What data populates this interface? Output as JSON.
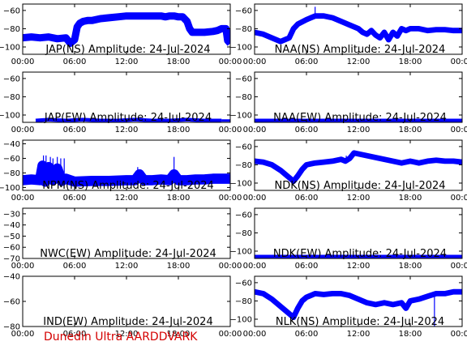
{
  "footer": {
    "text": "Dunedin Ultra AARDDVARK",
    "color": "#d40000"
  },
  "colors": {
    "trace": "#0000ff",
    "axis": "#000000"
  },
  "chart_data": [
    {
      "type": "line",
      "title": "JAP(NS) Amplitude: 24-Jul-2024",
      "x_ticks": [
        "00:00",
        "06:00",
        "12:00",
        "18:00",
        "00:00"
      ],
      "xlim": [
        0,
        24
      ],
      "ylim": [
        -108,
        -53
      ],
      "y_ticks": [
        -100,
        -80,
        -60
      ],
      "y_tick_labels": [
        "−100",
        "−80",
        "−60"
      ],
      "series": [
        {
          "x": [
            0,
            1,
            2,
            3,
            4,
            5,
            5.5,
            6,
            6.3,
            6.6,
            7,
            7.5,
            8,
            9,
            10,
            11,
            12,
            13,
            14,
            15,
            16,
            16.5,
            17,
            17.5,
            18,
            18.5,
            19,
            19.3,
            19.6,
            20,
            21,
            22,
            22.5,
            23,
            23.5,
            23.7,
            24
          ],
          "y": [
            -90,
            -89,
            -90,
            -89,
            -91,
            -90,
            -96,
            -92,
            -78,
            -74,
            -72,
            -71,
            -71,
            -69,
            -68,
            -67,
            -66,
            -66,
            -66,
            -66,
            -66,
            -67,
            -66,
            -66,
            -67,
            -67,
            -72,
            -80,
            -84,
            -84,
            -84,
            -83,
            -82,
            -80,
            -80,
            -93,
            -96
          ],
          "band": 4
        }
      ]
    },
    {
      "type": "line",
      "title": "NAA(NS) Amplitude: 24-Jul-2024",
      "x_ticks": [
        "00:00",
        "06:00",
        "12:00",
        "18:00",
        "00:00"
      ],
      "xlim": [
        0,
        24
      ],
      "ylim": [
        -108,
        -53
      ],
      "y_ticks": [
        -100,
        -80,
        -60
      ],
      "y_tick_labels": [
        "−100",
        "−80",
        "−60"
      ],
      "series": [
        {
          "x": [
            0,
            1,
            2,
            3,
            4,
            4.5,
            5,
            6,
            7,
            8,
            9,
            10,
            11,
            12,
            12.5,
            13,
            13.5,
            14,
            14.5,
            15,
            15.5,
            16,
            16.5,
            17,
            17.5,
            18,
            19,
            20,
            21,
            22,
            23,
            24
          ],
          "y": [
            -84,
            -86,
            -90,
            -94,
            -90,
            -80,
            -75,
            -70,
            -66,
            -66,
            -68,
            -72,
            -76,
            -80,
            -84,
            -86,
            -82,
            -87,
            -90,
            -84,
            -92,
            -84,
            -88,
            -80,
            -82,
            -80,
            -80,
            -82,
            -81,
            -81,
            -82,
            -82
          ],
          "band": 3,
          "spikes": [
            {
              "x": 7.0,
              "y": -56
            }
          ]
        }
      ]
    },
    {
      "type": "line",
      "title": "JAP(EW) Amplitude: 24-Jul-2024",
      "x_ticks": [
        "00:00",
        "06:00",
        "12:00",
        "18:00",
        "00:00"
      ],
      "xlim": [
        0,
        24
      ],
      "ylim": [
        -108,
        -53
      ],
      "y_ticks": [
        -100,
        -80,
        -60
      ],
      "y_tick_labels": [
        "−100",
        "−80",
        "−60"
      ],
      "series": [
        {
          "x": [
            1.5,
            3,
            5,
            7,
            9,
            11,
            13,
            15,
            17,
            19,
            21,
            23
          ],
          "y": [
            -106,
            -105,
            -106,
            -105,
            -106,
            -106,
            -105,
            -106,
            -106,
            -105,
            -106,
            -106
          ],
          "band": 2,
          "x_end": 24
        }
      ]
    },
    {
      "type": "line",
      "title": "NAA(EW) Amplitude: 24-Jul-2024",
      "x_ticks": [
        "00:00",
        "06:00",
        "12:00",
        "18:00",
        "00:00"
      ],
      "xlim": [
        0,
        24
      ],
      "ylim": [
        -108,
        -53
      ],
      "y_ticks": [
        -100,
        -80,
        -60
      ],
      "y_tick_labels": [
        "−100",
        "−80",
        "−60"
      ],
      "series": [
        {
          "x": [
            0,
            3,
            6,
            9,
            12,
            15,
            18,
            21,
            24
          ],
          "y": [
            -106,
            -106,
            -106,
            -106,
            -106,
            -106,
            -106,
            -106,
            -106
          ],
          "band": 2
        }
      ]
    },
    {
      "type": "line",
      "title": "NPM(NS) Amplitude: 24-Jul-2024",
      "x_ticks": [
        "00:00",
        "06:00",
        "12:00",
        "18:00",
        "00:00"
      ],
      "xlim": [
        0,
        24
      ],
      "ylim": [
        -104,
        -35
      ],
      "y_ticks": [
        -100,
        -80,
        -60,
        -40
      ],
      "y_tick_labels": [
        "−100",
        "−80",
        "−60",
        "−40"
      ],
      "series": [
        {
          "x": [
            0,
            1,
            2,
            2.3,
            2.6,
            3,
            3.5,
            4,
            4.5,
            5,
            6,
            8,
            10,
            12,
            13,
            13.5,
            14,
            15,
            16,
            17,
            17.5,
            18,
            19,
            20,
            21,
            22,
            23,
            24
          ],
          "y": [
            -90,
            -89,
            -90,
            -70,
            -92,
            -72,
            -90,
            -74,
            -91,
            -88,
            -92,
            -91,
            -91,
            -90,
            -90,
            -82,
            -90,
            -90,
            -89,
            -90,
            -82,
            -90,
            -90,
            -89,
            -89,
            -88,
            -88,
            -88
          ],
          "band": 7,
          "spikes": [
            {
              "x": 2.4,
              "y": -56
            },
            {
              "x": 2.7,
              "y": -56
            },
            {
              "x": 3.2,
              "y": -58
            },
            {
              "x": 3.5,
              "y": -60
            },
            {
              "x": 4.0,
              "y": -58
            },
            {
              "x": 4.4,
              "y": -60
            },
            {
              "x": 4.8,
              "y": -60
            },
            {
              "x": 13.3,
              "y": -72
            },
            {
              "x": 17.5,
              "y": -58
            }
          ]
        }
      ]
    },
    {
      "type": "line",
      "title": "NDK(NS) Amplitude: 24-Jul-2024",
      "x_ticks": [
        "00:00",
        "06:00",
        "12:00",
        "18:00",
        "00:00"
      ],
      "xlim": [
        0,
        24
      ],
      "ylim": [
        -108,
        -53
      ],
      "y_ticks": [
        -100,
        -80,
        -60
      ],
      "y_tick_labels": [
        "−100",
        "−80",
        "−60"
      ],
      "series": [
        {
          "x": [
            0,
            1,
            2,
            3,
            4,
            4.5,
            5,
            5.5,
            6,
            7,
            8,
            9,
            10,
            10.5,
            11,
            11.5,
            12,
            13,
            14,
            15,
            16,
            17,
            18,
            19,
            20,
            21,
            22,
            23,
            24
          ],
          "y": [
            -76,
            -77,
            -80,
            -86,
            -94,
            -98,
            -92,
            -85,
            -80,
            -78,
            -77,
            -76,
            -74,
            -76,
            -73,
            -67,
            -68,
            -70,
            -72,
            -74,
            -76,
            -78,
            -76,
            -78,
            -76,
            -75,
            -76,
            -76,
            -77
          ],
          "band": 3,
          "spikes": [
            {
              "x": 10.6,
              "y": -70
            }
          ]
        }
      ]
    },
    {
      "type": "line",
      "title": "NWC(EW) Amplitude: 24-Jul-2024",
      "x_ticks": [
        "00:00",
        "06:00",
        "12:00",
        "18:00",
        "00:00"
      ],
      "xlim": [
        0,
        24
      ],
      "ylim": [
        -70,
        -25
      ],
      "y_ticks": [
        -70,
        -60,
        -50,
        -40,
        -30
      ],
      "y_tick_labels": [
        "−70",
        "−60",
        "−50",
        "−40",
        "−30"
      ],
      "series": []
    },
    {
      "type": "line",
      "title": "NDK(EW) Amplitude: 24-Jul-2024",
      "x_ticks": [
        "00:00",
        "06:00",
        "12:00",
        "18:00",
        "00:00"
      ],
      "xlim": [
        0,
        24
      ],
      "ylim": [
        -108,
        -53
      ],
      "y_ticks": [
        -100,
        -80,
        -60
      ],
      "y_tick_labels": [
        "−100",
        "−80",
        "−60"
      ],
      "series": [
        {
          "x": [
            0,
            3,
            6,
            9,
            12,
            15,
            18,
            21,
            24
          ],
          "y": [
            -106,
            -106,
            -106,
            -106,
            -106,
            -106,
            -106,
            -106,
            -106
          ],
          "band": 2
        }
      ]
    },
    {
      "type": "line",
      "title": "IND(EW) Amplitude: 24-Jul-2024",
      "x_ticks": [
        "00:00",
        "06:00",
        "12:00",
        "18:00",
        "00:00"
      ],
      "xlim": [
        0,
        24
      ],
      "ylim": [
        -80,
        -40
      ],
      "y_ticks": [
        -80,
        -60,
        -40
      ],
      "y_tick_labels": [
        "−80",
        "−60",
        "−40"
      ],
      "series": []
    },
    {
      "type": "line",
      "title": "NLK(NS) Amplitude: 24-Jul-2024",
      "x_ticks": [
        "00:00",
        "06:00",
        "12:00",
        "18:00",
        "00:00"
      ],
      "xlim": [
        0,
        24
      ],
      "ylim": [
        -108,
        -53
      ],
      "y_ticks": [
        -100,
        -80,
        -60
      ],
      "y_tick_labels": [
        "−100",
        "−80",
        "−60"
      ],
      "series": [
        {
          "x": [
            0,
            1,
            2,
            3,
            4,
            4.5,
            5,
            5.5,
            6,
            7,
            8,
            9,
            10,
            11,
            12,
            13,
            14,
            15,
            16,
            17,
            17.5,
            18,
            19,
            20,
            21,
            22,
            23,
            24
          ],
          "y": [
            -70,
            -72,
            -78,
            -86,
            -94,
            -98,
            -88,
            -80,
            -76,
            -72,
            -73,
            -72,
            -72,
            -74,
            -78,
            -82,
            -84,
            -82,
            -84,
            -82,
            -88,
            -80,
            -78,
            -75,
            -72,
            -72,
            -70,
            -70
          ],
          "band": 3,
          "spikes": [
            {
              "x": 20.8,
              "y": -110
            }
          ]
        }
      ]
    }
  ]
}
